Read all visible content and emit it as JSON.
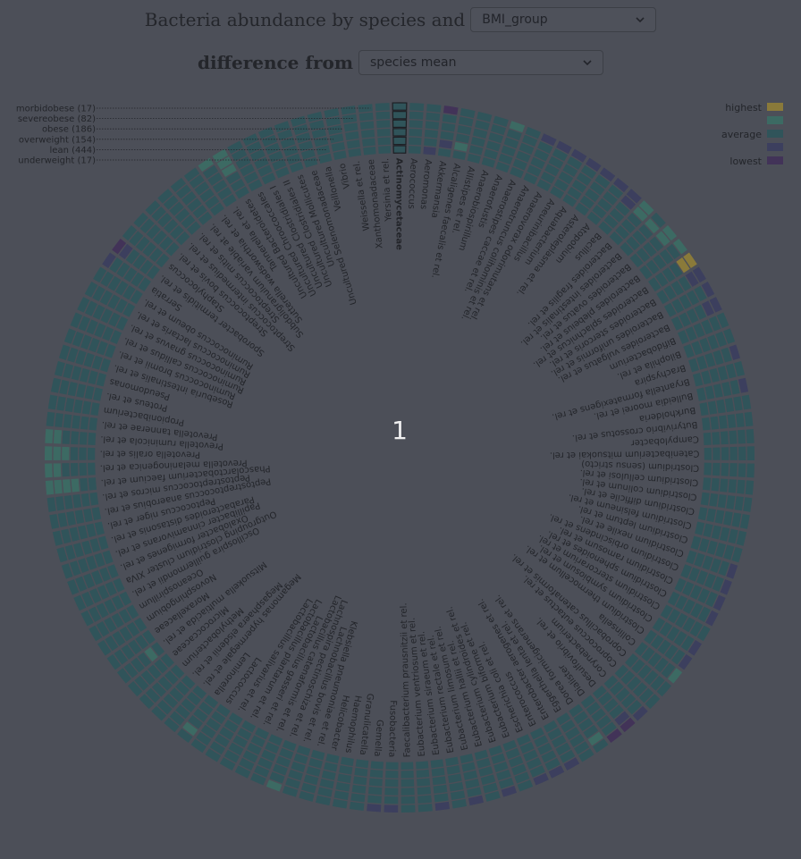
{
  "header": {
    "title_part1": "Bacteria abundance by species and",
    "title_part2": "difference from",
    "group_select": "BMI_group",
    "diff_select": "species mean"
  },
  "legend": {
    "highest": "highest",
    "average": "average",
    "lowest": "lowest",
    "colors": {
      "highest": "#8a7a3a",
      "high": "#3c6a63",
      "average": "#30545a",
      "low": "#3c3f5e",
      "lowest": "#423358"
    }
  },
  "center_value": "1",
  "chart_data": {
    "type": "heatmap",
    "layout": "radial",
    "groups": [
      "morbidobese (17)",
      "severeobese (82)",
      "obese (186)",
      "overweight (154)",
      "lean (444)",
      "underweight (17)"
    ],
    "highlighted_species": "Actinomycetaceae",
    "species": [
      "Actinomycetaceae",
      "Aerococcus",
      "Aeromonas",
      "Akkermansia",
      "Alcaligenes faecalis et rel.",
      "Allistipes et rel.",
      "Anaerobiospirillum",
      "Anaerofustis",
      "Anaerostipes caccae et rel.",
      "Anaerotruncus colihominis et rel.",
      "Anaerovorax odorimutans et rel.",
      "Aneurinibacillus",
      "Aquabacterium",
      "Asteroleplasma et rel.",
      "Atopobium",
      "Bacillus",
      "Bacteroides fragilis et rel.",
      "Bacteroides intestinalis et rel.",
      "Bacteroides ovatus et rel.",
      "Bacteroides plebeius et rel.",
      "Bacteroides splachnicus et rel.",
      "Bacteroides stercoris et rel.",
      "Bacteroides uniformis et rel.",
      "Bacteroides vulgatus et rel.",
      "Bifidobacterium",
      "Bilophila et rel.",
      "Brachyspira",
      "Bryantella formatexigens et rel.",
      "Bulleidia moorei et rel.",
      "Burkholderia",
      "Butyrivibrio crossotus et rel.",
      "Campylobacter",
      "Catenibacterium mitsuokai et rel.",
      "Clostridium (sensu stricto)",
      "Clostridium cellulosi et rel.",
      "Clostridium colinum et rel.",
      "Clostridium difficile et rel.",
      "Clostridium felsineum et rel.",
      "Clostridium leptum et rel.",
      "Clostridium nexile et rel.",
      "Clostridium orbiscindens et rel.",
      "Clostridium ramosum et rel.",
      "Clostridium sphenoides et rel.",
      "Clostridium stercorarium et rel.",
      "Clostridium symbiosum et rel.",
      "Clostridium thermocellum et rel.",
      "Collinsella",
      "Coprobacillus catenaformis et rel.",
      "Coprococcus eutactus et rel.",
      "Corynebacterium",
      "Desulfovibrio et rel.",
      "Dialister",
      "Dorea formicigenerans et rel.",
      "Eggerthella lenta et rel.",
      "Enterobacter aerogenes et rel.",
      "Enterococcus",
      "Escherichia coli et rel.",
      "Eubacterium biforme et rel.",
      "Eubacterium cylindroides et rel.",
      "Eubacterium hallii et rel.",
      "Eubacterium limosum et rel.",
      "Eubacterium rectale et rel.",
      "Eubacterium siraeum et rel.",
      "Eubacterium ventriosum et rel.",
      "Faecalibacterium prausnitzii et rel.",
      "Fusobacteria",
      "Gemella",
      "Granulicatella",
      "Haemophilus",
      "Helicobacter",
      "Klebsiella pneumoniae et rel.",
      "Lachnobacillus bovis et rel.",
      "Lachnospira pectinoschiza et rel.",
      "Lactobacillus catenaformis et rel.",
      "Lactobacillus gasseri et rel.",
      "Lactobacillus plantarum et rel.",
      "Lactobacillus salivarius et rel.",
      "Lactococcus",
      "Leminorella",
      "Megamonas hypermegale et rel.",
      "Megasphaera elsdenii et rel.",
      "Methylobacterium",
      "Micrococcaceae",
      "Mitsuokella multiacida et rel.",
      "Moraxellaceae",
      "Novosphingobium",
      "Oceanospirillum",
      "Oscillospira guillermondii et rel.",
      "Outgrouping clostridium cluster XIVa",
      "Oxalobacter formigenes et rel.",
      "Papillibacter cinnamivorans et rel.",
      "Parabacteroides distasonis et rel.",
      "Peptococcus niger et rel.",
      "Peptostreptococcus anaerobius et rel.",
      "Peptostreptococcus micros et rel.",
      "Phascolarctobacterium faecium et rel.",
      "Prevotella melaninogenica et rel.",
      "Prevotella oralis et rel.",
      "Prevotella ruminicola et rel.",
      "Prevotella tannerae et rel.",
      "Propionibacterium",
      "Proteus et rel.",
      "Pseudomonas",
      "Roseburia intestinalis et rel.",
      "Ruminococcus bromii et rel.",
      "Ruminococcus callidus et rel.",
      "Ruminococcus gnavus et rel.",
      "Ruminococcus lactaris et rel.",
      "Ruminococcus obeum et rel.",
      "Serratia",
      "Sporobacter termitidis et rel.",
      "Staphylococcus",
      "Streptococcus bovis et rel.",
      "Streptococcus intermedius et rel.",
      "Streptococcus mitis et rel.",
      "Subdoligranulum variable at rel.",
      "Sutterella wadsworthia et rel.",
      "Tannerella et rel.",
      "Uncultured Bacteroidetes",
      "Uncultured Chroococcales",
      "Uncultured Clostridiales I",
      "Uncultured Clostridiales II",
      "Uncultured Mollicutes",
      "Uncultured Selenomonadaceae",
      "Veillonella",
      "Vibrio",
      "Weissella et rel.",
      "Xanthomonadaceae",
      "Yersinia et rel."
    ],
    "values_note": "per-cell levels: 2=highest,1=high,0=average,-1=low,-2=lowest; rows follow groups order",
    "levels": [
      [
        0,
        0,
        0,
        0,
        0,
        0
      ],
      [
        0,
        0,
        0,
        0,
        0,
        0
      ],
      [
        0,
        0,
        0,
        0,
        0,
        -1
      ],
      [
        -2,
        0,
        0,
        0,
        -1,
        0
      ],
      [
        0,
        0,
        0,
        0,
        1,
        0
      ],
      [
        0,
        0,
        0,
        0,
        0,
        0
      ],
      [
        0,
        0,
        0,
        0,
        0,
        0
      ],
      [
        1,
        0,
        0,
        0,
        0,
        0
      ],
      [
        0,
        0,
        0,
        0,
        0,
        0
      ],
      [
        -1,
        0,
        0,
        0,
        0,
        0
      ],
      [
        -1,
        0,
        0,
        0,
        0,
        0
      ],
      [
        -1,
        0,
        0,
        0,
        0,
        0
      ],
      [
        -1,
        0,
        0,
        0,
        0,
        0
      ],
      [
        -1,
        0,
        0,
        0,
        0,
        0
      ],
      [
        -1,
        0,
        0,
        0,
        0,
        0
      ],
      [
        -1,
        -1,
        0,
        0,
        0,
        0
      ],
      [
        1,
        1,
        0,
        0,
        0,
        0
      ],
      [
        0,
        1,
        0,
        0,
        0,
        0
      ],
      [
        1,
        1,
        0,
        0,
        0,
        0
      ],
      [
        1,
        0,
        0,
        0,
        0,
        0
      ],
      [
        2,
        2,
        0,
        0,
        0,
        0
      ],
      [
        -1,
        -1,
        0,
        0,
        0,
        0
      ],
      [
        -1,
        0,
        0,
        0,
        0,
        0
      ],
      [
        -1,
        -1,
        0,
        0,
        0,
        0
      ],
      [
        0,
        0,
        0,
        0,
        0,
        0
      ],
      [
        0,
        0,
        0,
        0,
        0,
        0
      ],
      [
        -1,
        0,
        0,
        0,
        0,
        0
      ],
      [
        0,
        0,
        0,
        0,
        0,
        0
      ],
      [
        -1,
        0,
        0,
        0,
        0,
        0
      ],
      [
        0,
        0,
        0,
        0,
        0,
        0
      ],
      [
        0,
        0,
        0,
        0,
        0,
        0
      ],
      [
        0,
        0,
        0,
        0,
        0,
        0
      ],
      [
        0,
        0,
        0,
        0,
        0,
        0
      ],
      [
        0,
        0,
        0,
        0,
        0,
        0
      ],
      [
        0,
        0,
        0,
        0,
        0,
        0
      ],
      [
        0,
        0,
        0,
        0,
        0,
        0
      ],
      [
        0,
        0,
        0,
        0,
        0,
        0
      ],
      [
        0,
        0,
        0,
        0,
        0,
        0
      ],
      [
        0,
        0,
        0,
        0,
        0,
        0
      ],
      [
        -1,
        0,
        0,
        0,
        0,
        0
      ],
      [
        -1,
        0,
        0,
        0,
        0,
        0
      ],
      [
        -1,
        0,
        0,
        0,
        0,
        0
      ],
      [
        -1,
        0,
        0,
        0,
        0,
        0
      ],
      [
        0,
        0,
        0,
        0,
        0,
        0
      ],
      [
        -1,
        0,
        0,
        0,
        0,
        0
      ],
      [
        -1,
        0,
        0,
        0,
        0,
        0
      ],
      [
        1,
        0,
        0,
        0,
        0,
        0
      ],
      [
        0,
        0,
        0,
        0,
        0,
        0
      ],
      [
        0,
        0,
        0,
        0,
        0,
        0
      ],
      [
        -1,
        0,
        0,
        0,
        0,
        0
      ],
      [
        -2,
        -1,
        0,
        0,
        0,
        0
      ],
      [
        -2,
        0,
        0,
        0,
        0,
        0
      ],
      [
        0,
        1,
        0,
        0,
        0,
        0
      ],
      [
        0,
        0,
        0,
        0,
        0,
        0
      ],
      [
        -1,
        0,
        0,
        0,
        0,
        0
      ],
      [
        -1,
        0,
        0,
        0,
        0,
        0
      ],
      [
        -1,
        0,
        0,
        0,
        0,
        0
      ],
      [
        0,
        0,
        0,
        0,
        0,
        0
      ],
      [
        -1,
        0,
        0,
        0,
        0,
        0
      ],
      [
        0,
        0,
        0,
        0,
        0,
        0
      ],
      [
        -1,
        0,
        0,
        0,
        0,
        0
      ],
      [
        0,
        0,
        0,
        0,
        0,
        0
      ],
      [
        -1,
        0,
        0,
        0,
        0,
        0
      ],
      [
        0,
        0,
        0,
        0,
        0,
        0
      ],
      [
        0,
        0,
        0,
        0,
        0,
        0
      ],
      [
        -1,
        0,
        0,
        0,
        0,
        0
      ],
      [
        -1,
        0,
        0,
        0,
        0,
        0
      ],
      [
        0,
        0,
        0,
        0,
        0,
        0
      ],
      [
        0,
        0,
        0,
        0,
        0,
        0
      ],
      [
        0,
        0,
        0,
        0,
        0,
        0
      ],
      [
        0,
        0,
        0,
        0,
        0,
        0
      ],
      [
        0,
        0,
        0,
        0,
        0,
        0
      ],
      [
        1,
        0,
        0,
        0,
        0,
        0
      ],
      [
        0,
        0,
        0,
        0,
        0,
        0
      ],
      [
        0,
        0,
        0,
        0,
        0,
        0
      ],
      [
        0,
        0,
        0,
        0,
        0,
        0
      ],
      [
        0,
        0,
        0,
        0,
        0,
        0
      ],
      [
        0,
        0,
        0,
        0,
        0,
        0
      ],
      [
        0,
        1,
        0,
        0,
        0,
        0
      ],
      [
        0,
        0,
        0,
        0,
        0,
        0
      ],
      [
        0,
        0,
        0,
        0,
        0,
        0
      ],
      [
        0,
        0,
        0,
        0,
        0,
        0
      ],
      [
        0,
        0,
        0,
        0,
        0,
        0
      ],
      [
        0,
        0,
        0,
        0,
        1,
        0
      ],
      [
        0,
        0,
        0,
        0,
        0,
        0
      ],
      [
        0,
        0,
        0,
        0,
        0,
        0
      ],
      [
        0,
        0,
        0,
        0,
        0,
        0
      ],
      [
        0,
        0,
        0,
        0,
        0,
        0
      ],
      [
        0,
        0,
        0,
        0,
        0,
        0
      ],
      [
        0,
        0,
        0,
        0,
        0,
        0
      ],
      [
        0,
        0,
        0,
        0,
        0,
        0
      ],
      [
        0,
        0,
        0,
        0,
        0,
        0
      ],
      [
        0,
        0,
        0,
        0,
        0,
        0
      ],
      [
        0,
        0,
        0,
        0,
        0,
        0
      ],
      [
        0,
        0,
        0,
        0,
        0,
        0
      ],
      [
        1,
        1,
        1,
        1,
        0,
        0
      ],
      [
        1,
        1,
        0,
        0,
        0,
        0
      ],
      [
        1,
        1,
        1,
        0,
        0,
        0
      ],
      [
        1,
        1,
        0,
        0,
        0,
        0
      ],
      [
        0,
        0,
        0,
        0,
        0,
        0
      ],
      [
        0,
        0,
        0,
        0,
        0,
        0
      ],
      [
        0,
        0,
        0,
        0,
        0,
        0
      ],
      [
        0,
        0,
        0,
        0,
        0,
        0
      ],
      [
        0,
        0,
        0,
        0,
        0,
        0
      ],
      [
        0,
        0,
        0,
        0,
        0,
        0
      ],
      [
        0,
        0,
        0,
        0,
        0,
        0
      ],
      [
        0,
        0,
        0,
        0,
        0,
        0
      ],
      [
        0,
        0,
        0,
        0,
        0,
        0
      ],
      [
        0,
        0,
        0,
        0,
        0,
        0
      ],
      [
        -1,
        0,
        0,
        0,
        0,
        0
      ],
      [
        -2,
        -1,
        0,
        0,
        0,
        0
      ],
      [
        0,
        0,
        0,
        0,
        0,
        0
      ],
      [
        0,
        0,
        0,
        0,
        0,
        0
      ],
      [
        0,
        0,
        0,
        0,
        0,
        0
      ],
      [
        0,
        0,
        0,
        0,
        0,
        0
      ],
      [
        0,
        0,
        0,
        0,
        0,
        0
      ],
      [
        0,
        0,
        0,
        0,
        0,
        0
      ],
      [
        1,
        0,
        0,
        0,
        0,
        0
      ],
      [
        1,
        1,
        1,
        0,
        0,
        0
      ],
      [
        0,
        0,
        0,
        0,
        0,
        0
      ],
      [
        0,
        0,
        0,
        0,
        0,
        0
      ],
      [
        0,
        0,
        0,
        0,
        0,
        0
      ],
      [
        0,
        0,
        0,
        0,
        0,
        0
      ],
      [
        0,
        0,
        0,
        0,
        0,
        0
      ],
      [
        0,
        0,
        0,
        0,
        0,
        0
      ],
      [
        0,
        0,
        0,
        0,
        0,
        0
      ],
      [
        0,
        0,
        0,
        0,
        0,
        0
      ],
      [
        0,
        0,
        0,
        0,
        0,
        0
      ],
      [
        0,
        0,
        0,
        0,
        0,
        0
      ]
    ]
  }
}
